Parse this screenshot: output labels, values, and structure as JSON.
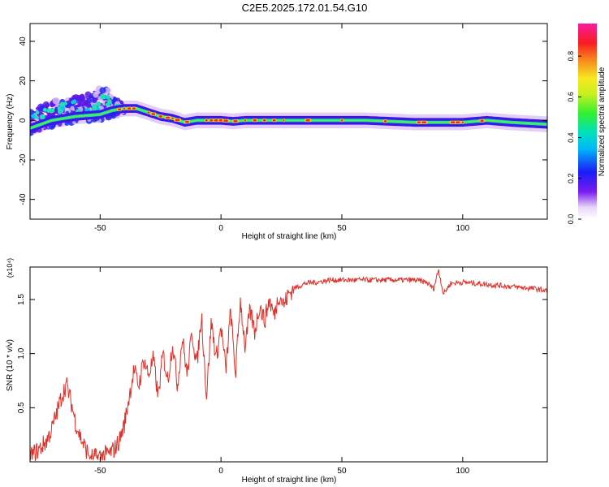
{
  "title": "C2E5.2025.172.01.54.G10",
  "colors": {
    "snr_line": "#e0302a",
    "trace_background": "#3c18e8",
    "trace_halo": "#d8b8f4"
  },
  "chart_data": [
    {
      "type": "heatmap",
      "xlabel": "Height of straight line (km)",
      "ylabel": "Frequency (Hz)",
      "xlim": [
        -79,
        135
      ],
      "ylim": [
        -50,
        49
      ],
      "xticks": [
        "-50",
        "0",
        "50",
        "100"
      ],
      "xtick_values": [
        -50,
        0,
        50,
        100
      ],
      "yticks": [
        "40",
        "20",
        "0",
        "-20",
        "-40"
      ],
      "ytick_values": [
        40,
        20,
        0,
        -20,
        -40
      ],
      "colorbar": {
        "label": "Normalized spectral amplitude",
        "range": [
          0,
          0.96
        ],
        "ticks": [
          "0.0",
          "0.2",
          "0.4",
          "0.6",
          "0.8"
        ],
        "tick_values": [
          0,
          0.2,
          0.4,
          0.6,
          0.8
        ],
        "colormap": "rainbow (white-purple-blue-cyan-green-yellow-red-magenta)"
      },
      "ridge": {
        "description": "dominant frequency trace vs height",
        "x": [
          -79,
          -70,
          -60,
          -50,
          -45,
          -40,
          -35,
          -30,
          -25,
          -20,
          -15,
          -10,
          -5,
          0,
          5,
          10,
          20,
          40,
          60,
          80,
          90,
          100,
          110,
          120,
          135
        ],
        "y": [
          -4,
          0,
          2,
          3,
          5,
          6,
          6,
          4,
          2,
          1,
          -1,
          0,
          0,
          0,
          -0.5,
          0,
          0,
          0,
          0,
          -1,
          -1,
          -1,
          0,
          -1,
          -2
        ]
      },
      "scatter_band": {
        "description": "noisy spectral energy above the ridge at low heights",
        "x": [
          -79,
          -70,
          -60,
          -55,
          -50,
          -47,
          -45,
          -40
        ],
        "y_top": [
          2,
          8,
          10,
          12,
          14,
          14,
          10,
          6
        ]
      }
    },
    {
      "type": "line",
      "xlabel": "Height of straight line (km)",
      "ylabel": "SNR (10 * v/v)",
      "y_scale_label": "(x10⁴)",
      "xlim": [
        -79,
        135
      ],
      "ylim": [
        0,
        1.8
      ],
      "xticks": [
        "-50",
        "0",
        "50",
        "100"
      ],
      "xtick_values": [
        -50,
        0,
        50,
        100
      ],
      "yticks": [
        "0.5",
        "1.0",
        "1.5"
      ],
      "ytick_values": [
        0.5,
        1.0,
        1.5
      ],
      "series": [
        {
          "x": [
            -79,
            -75,
            -72,
            -70,
            -68,
            -66,
            -64,
            -62,
            -60,
            -58,
            -56,
            -54,
            -52,
            -50,
            -48,
            -46,
            -44,
            -42,
            -40,
            -38,
            -36,
            -34,
            -32,
            -30,
            -28,
            -26,
            -24,
            -22,
            -20,
            -18,
            -16,
            -14,
            -12,
            -10,
            -8,
            -6,
            -4,
            -2,
            0,
            2,
            4,
            6,
            8,
            10,
            12,
            14,
            16,
            18,
            20,
            22,
            24,
            26,
            28,
            30,
            35,
            40,
            45,
            50,
            60,
            70,
            80,
            85,
            88,
            90,
            92,
            95,
            100,
            110,
            120,
            130,
            135
          ],
          "y": [
            0.05,
            0.12,
            0.2,
            0.3,
            0.45,
            0.6,
            0.72,
            0.55,
            0.35,
            0.22,
            0.12,
            0.05,
            0.04,
            0.05,
            0.06,
            0.08,
            0.12,
            0.2,
            0.35,
            0.6,
            0.85,
            0.7,
            0.95,
            0.8,
            0.95,
            0.6,
            1.0,
            0.75,
            1.1,
            0.7,
            1.15,
            0.8,
            1.2,
            0.9,
            1.35,
            0.6,
            1.3,
            0.95,
            1.25,
            0.85,
            1.4,
            0.8,
            1.5,
            1.05,
            1.4,
            1.2,
            1.45,
            1.3,
            1.5,
            1.35,
            1.55,
            1.45,
            1.55,
            1.6,
            1.65,
            1.66,
            1.68,
            1.68,
            1.68,
            1.68,
            1.68,
            1.66,
            1.6,
            1.78,
            1.55,
            1.65,
            1.66,
            1.64,
            1.62,
            1.6,
            1.58
          ]
        }
      ]
    }
  ]
}
